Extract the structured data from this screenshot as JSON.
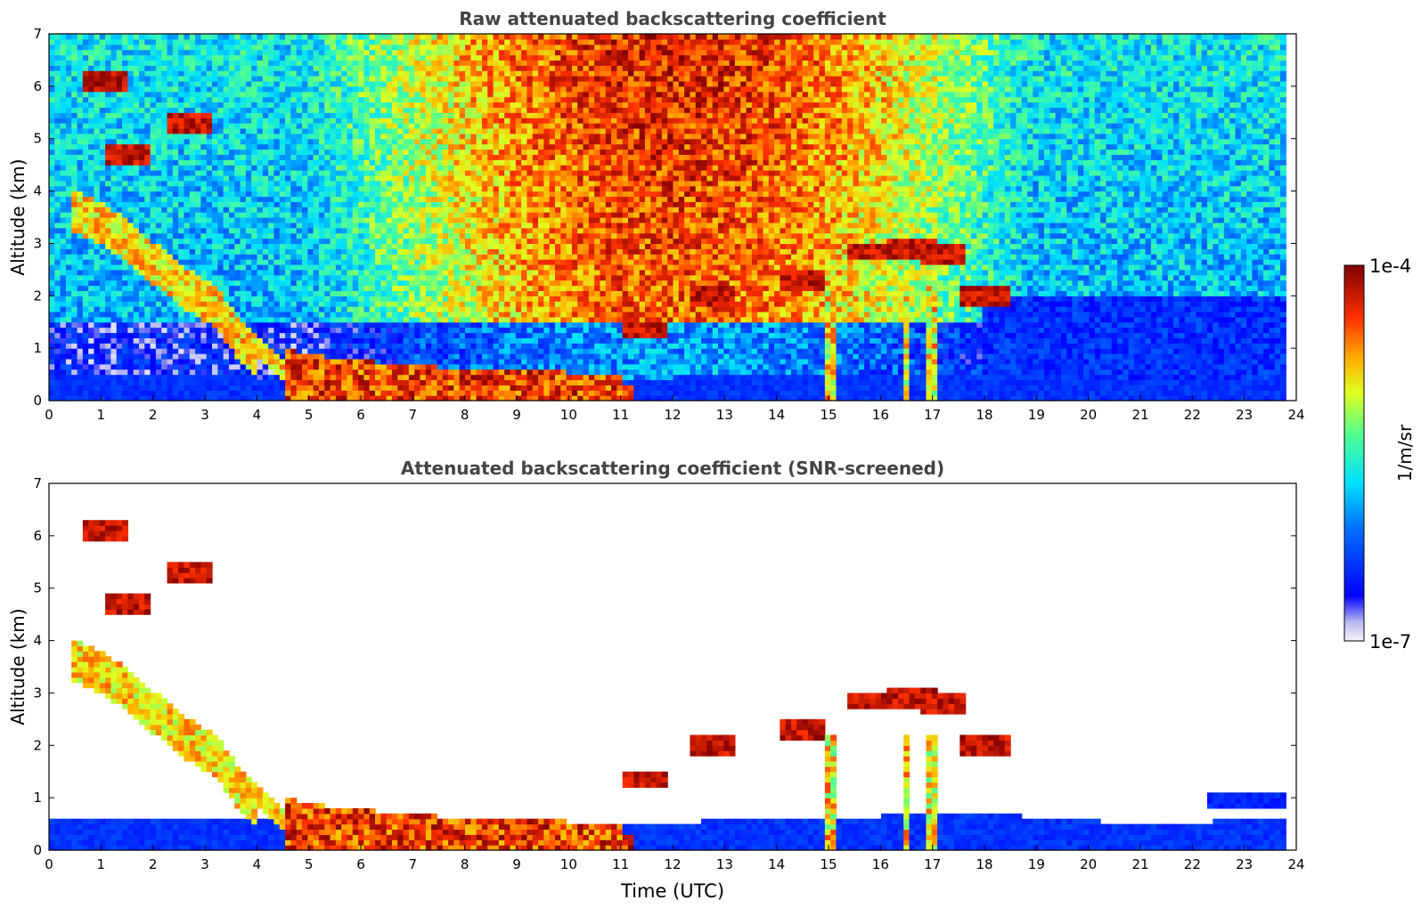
{
  "figure": {
    "xlabel": "Time (UTC)",
    "colorbar": {
      "label": "1/m/sr",
      "top_label": "1e-4",
      "bottom_label": "1e-7",
      "scale": "log",
      "range": [
        1e-07,
        0.0001
      ],
      "colormap": "jet"
    }
  },
  "chart_data": [
    {
      "type": "heatmap",
      "title": "Raw attenuated backscattering coefficient",
      "ylabel": "Altitude (km)",
      "xlabel": "",
      "xlim": [
        0,
        24
      ],
      "ylim": [
        0,
        7
      ],
      "xticks": [
        "0",
        "1",
        "2",
        "3",
        "4",
        "5",
        "6",
        "7",
        "8",
        "9",
        "10",
        "11",
        "12",
        "13",
        "14",
        "15",
        "16",
        "17",
        "18",
        "19",
        "20",
        "21",
        "22",
        "23",
        "24"
      ],
      "yticks": [
        "0",
        "1",
        "2",
        "3",
        "4",
        "5",
        "6",
        "7"
      ],
      "data_end_time": 23.8,
      "grid": false,
      "features": {
        "aerosol_layer_top_km": [
          [
            0,
            0.45
          ],
          [
            3,
            0.45
          ],
          [
            4,
            0.45
          ],
          [
            4.6,
            0.3
          ],
          [
            11,
            0.4
          ],
          [
            12,
            0.45
          ],
          [
            16,
            0.45
          ],
          [
            18,
            0.5
          ],
          [
            20,
            0.45
          ],
          [
            22,
            0.4
          ],
          [
            23.8,
            0.35
          ]
        ],
        "descending_cloud": [
          [
            0.6,
            4.0
          ],
          [
            1.5,
            3.5
          ],
          [
            2.5,
            2.6
          ],
          [
            3.2,
            2.2
          ],
          [
            3.8,
            1.4
          ],
          [
            4.5,
            0.8
          ],
          [
            5.5,
            0.6
          ],
          [
            7,
            0.5
          ],
          [
            8,
            0.4
          ],
          [
            10,
            0.35
          ],
          [
            11,
            0.3
          ]
        ],
        "high_level_clouds": [
          {
            "t": 1.1,
            "alt": 6.1
          },
          {
            "t": 2.7,
            "alt": 5.3
          },
          {
            "t": 1.5,
            "alt": 4.7
          },
          {
            "t": 11.5,
            "alt": 1.35
          },
          {
            "t": 12.8,
            "alt": 2.0
          },
          {
            "t": 14.5,
            "alt": 2.3
          },
          {
            "t": 15.8,
            "alt": 2.85
          },
          {
            "t": 16.6,
            "alt": 2.9
          },
          {
            "t": 17.2,
            "alt": 2.8
          },
          {
            "t": 18,
            "alt": 2.0
          }
        ]
      }
    },
    {
      "type": "heatmap",
      "title": "Attenuated backscattering coefficient (SNR-screened)",
      "ylabel": "Altitude (km)",
      "xlabel": "Time (UTC)",
      "xlim": [
        0,
        24
      ],
      "ylim": [
        0,
        7
      ],
      "xticks": [
        "0",
        "1",
        "2",
        "3",
        "4",
        "5",
        "6",
        "7",
        "8",
        "9",
        "10",
        "11",
        "12",
        "13",
        "14",
        "15",
        "16",
        "17",
        "18",
        "19",
        "20",
        "21",
        "22",
        "23",
        "24"
      ],
      "yticks": [
        "0",
        "1",
        "2",
        "3",
        "4",
        "5",
        "6",
        "7"
      ],
      "data_end_time": 23.8,
      "grid": false,
      "features": {
        "screened": true,
        "aerosol_layer_top_km": [
          [
            0,
            0.6
          ],
          [
            4,
            0.6
          ],
          [
            11,
            0.5
          ],
          [
            14,
            0.6
          ],
          [
            18,
            0.7
          ],
          [
            21,
            0.5
          ],
          [
            23.8,
            0.6
          ]
        ],
        "elevated_patch": {
          "t_start": 22.3,
          "t_end": 23.8,
          "alt_low": 0.8,
          "alt_high": 1.1
        }
      }
    }
  ]
}
